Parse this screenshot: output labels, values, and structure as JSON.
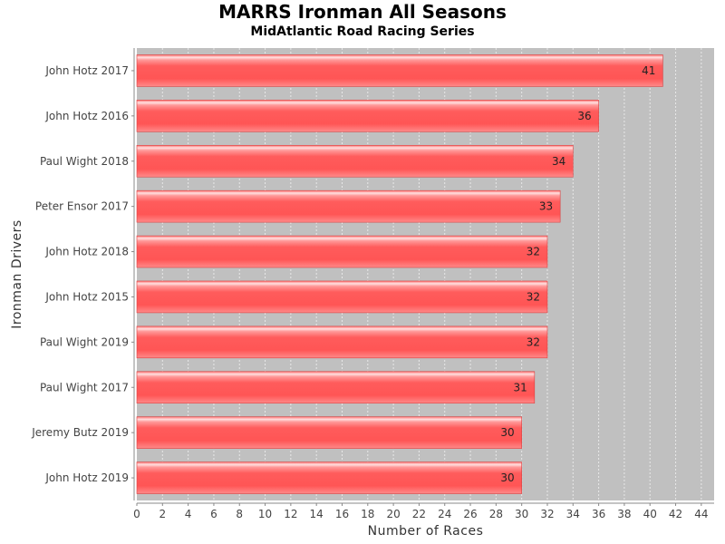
{
  "chart_data": {
    "type": "bar",
    "orientation": "horizontal",
    "title": "MARRS Ironman All Seasons",
    "subtitle": "MidAtlantic Road Racing Series",
    "xlabel": "Number of Races",
    "ylabel": "Ironman Drivers",
    "xlim": [
      0,
      45
    ],
    "xticks": [
      0,
      2,
      4,
      6,
      8,
      10,
      12,
      14,
      16,
      18,
      20,
      22,
      24,
      26,
      28,
      30,
      32,
      34,
      36,
      38,
      40,
      42,
      44
    ],
    "categories": [
      "John Hotz 2017",
      "John Hotz 2016",
      "Paul Wight 2018",
      "Peter Ensor 2017",
      "John Hotz 2018",
      "John Hotz 2015",
      "Paul Wight 2019",
      "Paul Wight 2017",
      "Jeremy Butz 2019",
      "John Hotz 2019"
    ],
    "values": [
      41,
      36,
      34,
      33,
      32,
      32,
      32,
      31,
      30,
      30
    ],
    "grid": true,
    "legend": "none",
    "colors": {
      "bar": "#ff5a5a",
      "bar_highlight": "#ffd6d6",
      "bar_edge": "#d94040",
      "plot_background": "#c0c0c0",
      "gridline": "#e8e8e8"
    }
  }
}
